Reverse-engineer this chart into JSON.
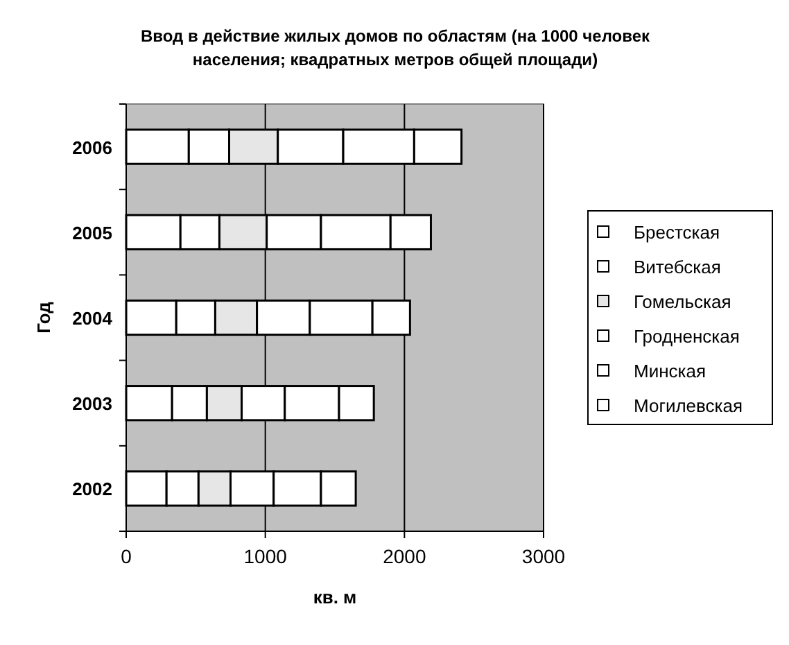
{
  "chart_data": {
    "type": "bar",
    "orientation": "horizontal",
    "stacked": true,
    "title": "Ввод в действие жилых домов по областям (на 1000 человек населения; квадратных метров общей площади)",
    "xlabel": "кв. м",
    "ylabel": "Год",
    "categories": [
      "2006",
      "2005",
      "2004",
      "2003",
      "2002"
    ],
    "series": [
      {
        "name": "Брестская",
        "color": "#ffffff",
        "values": [
          450,
          390,
          360,
          330,
          290
        ]
      },
      {
        "name": "Витебская",
        "color": "#ffffff",
        "values": [
          290,
          280,
          280,
          250,
          230
        ]
      },
      {
        "name": "Гомельская",
        "color": "#e6e6e6",
        "values": [
          350,
          340,
          300,
          250,
          230
        ]
      },
      {
        "name": "Гродненская",
        "color": "#ffffff",
        "values": [
          470,
          390,
          380,
          310,
          310
        ]
      },
      {
        "name": "Минская",
        "color": "#ffffff",
        "values": [
          510,
          500,
          450,
          390,
          340
        ]
      },
      {
        "name": "Могилевская",
        "color": "#ffffff",
        "values": [
          340,
          290,
          270,
          250,
          250
        ]
      }
    ],
    "xlim": [
      0,
      3000
    ],
    "xticks": [
      0,
      1000,
      2000,
      3000
    ],
    "grid": "x",
    "legend": "right"
  }
}
